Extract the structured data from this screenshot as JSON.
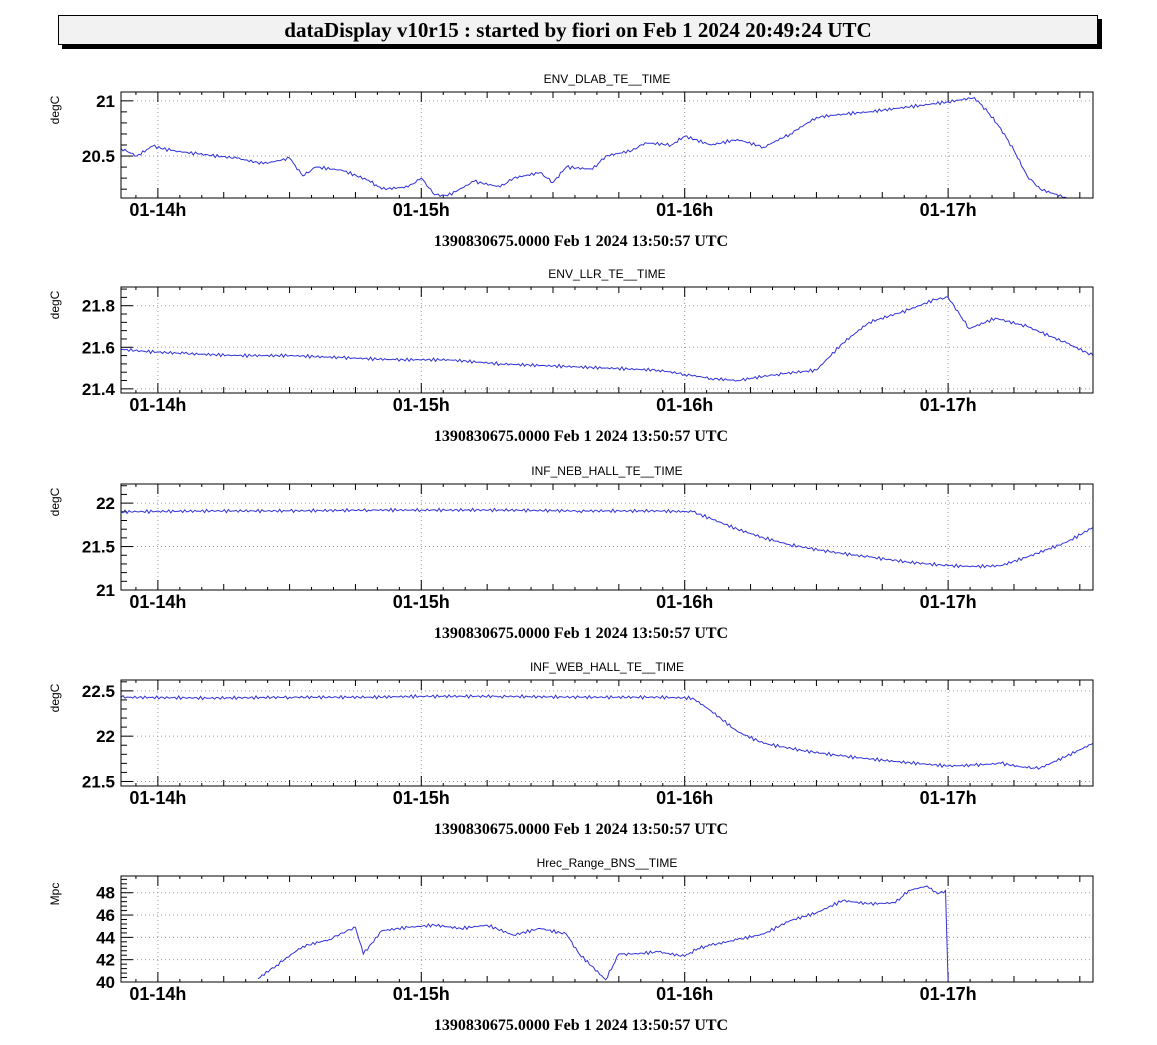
{
  "header": {
    "title": "dataDisplay v10r15 : started by fiori on Feb  1 2024 20:49:24 UTC"
  },
  "colors": {
    "trace": "#3232d8",
    "grid": "#9a9a9a",
    "header_bg": "#f2f2f2"
  },
  "chart_data": [
    {
      "type": "line",
      "title": "ENV_DLAB_TE__TIME",
      "ylabel": "degC",
      "xlabel": "1390830675.0000 Feb 1 2024 13:50:57 UTC",
      "xlim": [
        13.86,
        17.55
      ],
      "ylim": [
        20.12,
        21.08
      ],
      "yticks": [
        20.5,
        21
      ],
      "ytick_labels": [
        "20.5",
        "21"
      ],
      "xticks": [
        14,
        15,
        16,
        17
      ],
      "xtick_labels": [
        "01-14h",
        "01-15h",
        "01-16h",
        "01-17h"
      ],
      "grid": true,
      "series": [
        {
          "x": [
            13.86,
            13.92,
            13.98,
            14.05,
            14.15,
            14.3,
            14.4,
            14.5,
            14.55,
            14.6,
            14.7,
            14.8,
            14.85,
            14.95,
            15.0,
            15.05,
            15.1,
            15.2,
            15.3,
            15.35,
            15.45,
            15.5,
            15.55,
            15.65,
            15.7,
            15.8,
            15.85,
            15.95,
            16.0,
            16.1,
            16.2,
            16.3,
            16.4,
            16.5,
            16.6,
            16.7,
            16.8,
            16.9,
            17.0,
            17.1,
            17.15,
            17.2,
            17.25,
            17.3,
            17.35,
            17.45
          ],
          "y": [
            20.57,
            20.5,
            20.59,
            20.55,
            20.52,
            20.48,
            20.43,
            20.48,
            20.32,
            20.4,
            20.37,
            20.28,
            20.2,
            20.22,
            20.3,
            20.15,
            20.14,
            20.27,
            20.22,
            20.3,
            20.35,
            20.26,
            20.4,
            20.38,
            20.5,
            20.55,
            20.62,
            20.6,
            20.68,
            20.6,
            20.65,
            20.58,
            20.7,
            20.85,
            20.88,
            20.9,
            20.93,
            20.96,
            20.99,
            21.03,
            20.9,
            20.75,
            20.55,
            20.32,
            20.2,
            20.12
          ]
        }
      ]
    },
    {
      "type": "line",
      "title": "ENV_LLR_TE__TIME",
      "ylabel": "degC",
      "xlabel": "1390830675.0000 Feb 1 2024 13:50:57 UTC",
      "xlim": [
        13.86,
        17.55
      ],
      "ylim": [
        21.38,
        21.89
      ],
      "yticks": [
        21.4,
        21.6,
        21.8
      ],
      "ytick_labels": [
        "21.4",
        "21.6",
        "21.8"
      ],
      "xticks": [
        14,
        15,
        16,
        17
      ],
      "xtick_labels": [
        "01-14h",
        "01-15h",
        "01-16h",
        "01-17h"
      ],
      "grid": true,
      "series": [
        {
          "x": [
            13.86,
            13.95,
            14.1,
            14.3,
            14.5,
            14.7,
            14.9,
            15.1,
            15.3,
            15.5,
            15.7,
            15.9,
            16.0,
            16.1,
            16.2,
            16.35,
            16.5,
            16.6,
            16.7,
            16.85,
            16.95,
            17.0,
            17.08,
            17.18,
            17.3,
            17.45,
            17.55
          ],
          "y": [
            21.59,
            21.58,
            21.57,
            21.56,
            21.56,
            21.55,
            21.54,
            21.54,
            21.52,
            21.51,
            21.5,
            21.49,
            21.47,
            21.45,
            21.44,
            21.47,
            21.49,
            21.62,
            21.72,
            21.78,
            21.83,
            21.84,
            21.69,
            21.74,
            21.7,
            21.62,
            21.56
          ]
        }
      ]
    },
    {
      "type": "line",
      "title": "INF_NEB_HALL_TE__TIME",
      "ylabel": "degC",
      "xlabel": "1390830675.0000 Feb 1 2024 13:50:57 UTC",
      "xlim": [
        13.86,
        17.55
      ],
      "ylim": [
        21.0,
        22.22
      ],
      "yticks": [
        21,
        21.5,
        22
      ],
      "ytick_labels": [
        "21",
        "21.5",
        "22"
      ],
      "xticks": [
        14,
        15,
        16,
        17
      ],
      "xtick_labels": [
        "01-14h",
        "01-15h",
        "01-16h",
        "01-17h"
      ],
      "grid": true,
      "series": [
        {
          "x": [
            13.86,
            14.2,
            14.5,
            14.8,
            15.0,
            15.3,
            15.6,
            15.9,
            16.03,
            16.1,
            16.2,
            16.3,
            16.4,
            16.55,
            16.7,
            16.85,
            17.0,
            17.1,
            17.2,
            17.3,
            17.45,
            17.55
          ],
          "y": [
            21.9,
            21.91,
            21.91,
            21.92,
            21.92,
            21.92,
            21.91,
            21.91,
            21.9,
            21.82,
            21.7,
            21.6,
            21.52,
            21.44,
            21.38,
            21.32,
            21.28,
            21.27,
            21.28,
            21.38,
            21.55,
            21.72
          ]
        }
      ]
    },
    {
      "type": "line",
      "title": "INF_WEB_HALL_TE__TIME",
      "ylabel": "degC",
      "xlabel": "1390830675.0000 Feb 1 2024 13:50:57 UTC",
      "xlim": [
        13.86,
        17.55
      ],
      "ylim": [
        21.45,
        22.62
      ],
      "yticks": [
        21.5,
        22,
        22.5
      ],
      "ytick_labels": [
        "21.5",
        "22",
        "22.5"
      ],
      "xticks": [
        14,
        15,
        16,
        17
      ],
      "xtick_labels": [
        "01-14h",
        "01-15h",
        "01-16h",
        "01-17h"
      ],
      "grid": true,
      "series": [
        {
          "x": [
            13.86,
            14.2,
            14.5,
            14.8,
            15.0,
            15.3,
            15.6,
            15.9,
            16.03,
            16.1,
            16.2,
            16.3,
            16.45,
            16.6,
            16.8,
            17.0,
            17.1,
            17.2,
            17.3,
            17.35,
            17.45,
            17.55
          ],
          "y": [
            22.43,
            22.42,
            22.43,
            22.43,
            22.44,
            22.44,
            22.43,
            22.43,
            22.42,
            22.28,
            22.05,
            21.92,
            21.84,
            21.78,
            21.72,
            21.67,
            21.68,
            21.7,
            21.65,
            21.65,
            21.78,
            21.92
          ]
        }
      ]
    },
    {
      "type": "line",
      "title": "Hrec_Range_BNS__TIME",
      "ylabel": "Mpc",
      "xlabel": "1390830675.0000 Feb 1 2024 13:50:57 UTC",
      "xlim": [
        13.86,
        17.55
      ],
      "ylim": [
        40,
        49.5
      ],
      "yticks": [
        40,
        42,
        44,
        46,
        48
      ],
      "ytick_labels": [
        "40",
        "42",
        "44",
        "46",
        "48"
      ],
      "xticks": [
        14,
        15,
        16,
        17
      ],
      "xtick_labels": [
        "01-14h",
        "01-15h",
        "01-16h",
        "01-17h"
      ],
      "grid": true,
      "series": [
        {
          "x": [
            14.38,
            14.45,
            14.55,
            14.65,
            14.7,
            14.75,
            14.78,
            14.85,
            14.95,
            15.05,
            15.15,
            15.25,
            15.35,
            15.45,
            15.55,
            15.6,
            15.7,
            15.75,
            15.8,
            15.9,
            16.0,
            16.05,
            16.1,
            16.2,
            16.3,
            16.4,
            16.5,
            16.6,
            16.7,
            16.8,
            16.85,
            16.92,
            16.96,
            16.99,
            17.0
          ],
          "y": [
            40.3,
            41.5,
            43.2,
            43.8,
            44.4,
            44.9,
            42.5,
            44.6,
            44.9,
            45.1,
            44.8,
            45.1,
            44.2,
            44.8,
            44.3,
            42.5,
            40.2,
            42.5,
            42.5,
            42.7,
            42.3,
            43.0,
            43.3,
            43.8,
            44.3,
            45.5,
            46.2,
            47.3,
            47.0,
            47.1,
            48.2,
            48.6,
            47.9,
            48.2,
            40.0
          ]
        }
      ]
    }
  ]
}
